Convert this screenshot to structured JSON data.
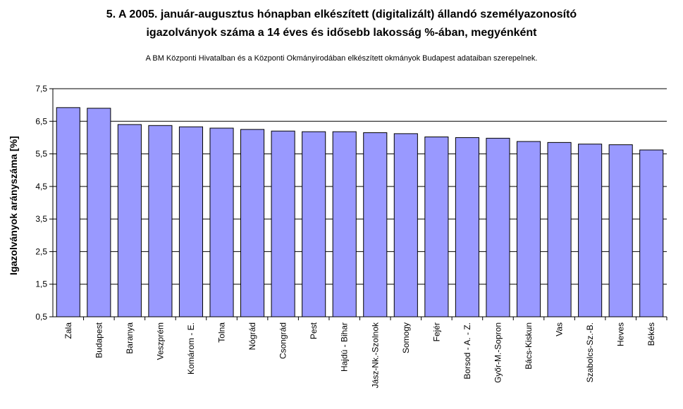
{
  "header": {
    "title_line1": "5. A 2005. január-augusztus hónapban elkészített (digitalizált) állandó személyazonosító",
    "title_line2": "igazolványok száma a 14 éves és idősebb lakosság %-ában,  megyénként",
    "subtitle": "A BM Központi Hivatalban és a Központi Okmányirodában elkészített  okmányok Budapest adataiban szerepelnek."
  },
  "chart_data": {
    "type": "bar",
    "title": "5. A 2005. január-augusztus hónapban elkészített (digitalizált) állandó személyazonosító igazolványok száma a 14 éves és idősebb lakosság %-ában,  megyénként",
    "ylabel": "Igazolványok arányszáma [%]",
    "xlabel": "",
    "ylim": [
      0.5,
      7.5
    ],
    "yticks": [
      "0,5",
      "1,5",
      "2,5",
      "3,5",
      "4,5",
      "5,5",
      "6,5",
      "7,5"
    ],
    "ytick_values": [
      0.5,
      1.5,
      2.5,
      3.5,
      4.5,
      5.5,
      6.5,
      7.5
    ],
    "grid": true,
    "bar_color": "#9999ff",
    "categories": [
      "Zala",
      "Budapest",
      "Baranya",
      "Veszprém",
      "Komárom - E.",
      "Tolna",
      "Nógrád",
      "Csongrád",
      "Pest",
      "Hajdú - Bihar",
      "Jász-Nk.-Szolnok",
      "Somogy",
      "Fejér",
      "Borsod - A. - Z.",
      "Győr-M.-Sopron",
      "Bács-Kiskun",
      "Vas",
      "Szabolcs-Sz.-B.",
      "Heves",
      "Békés"
    ],
    "values": [
      6.92,
      6.9,
      6.4,
      6.37,
      6.33,
      6.29,
      6.25,
      6.2,
      6.18,
      6.18,
      6.15,
      6.12,
      6.02,
      6.0,
      5.98,
      5.88,
      5.85,
      5.8,
      5.78,
      5.62
    ]
  }
}
